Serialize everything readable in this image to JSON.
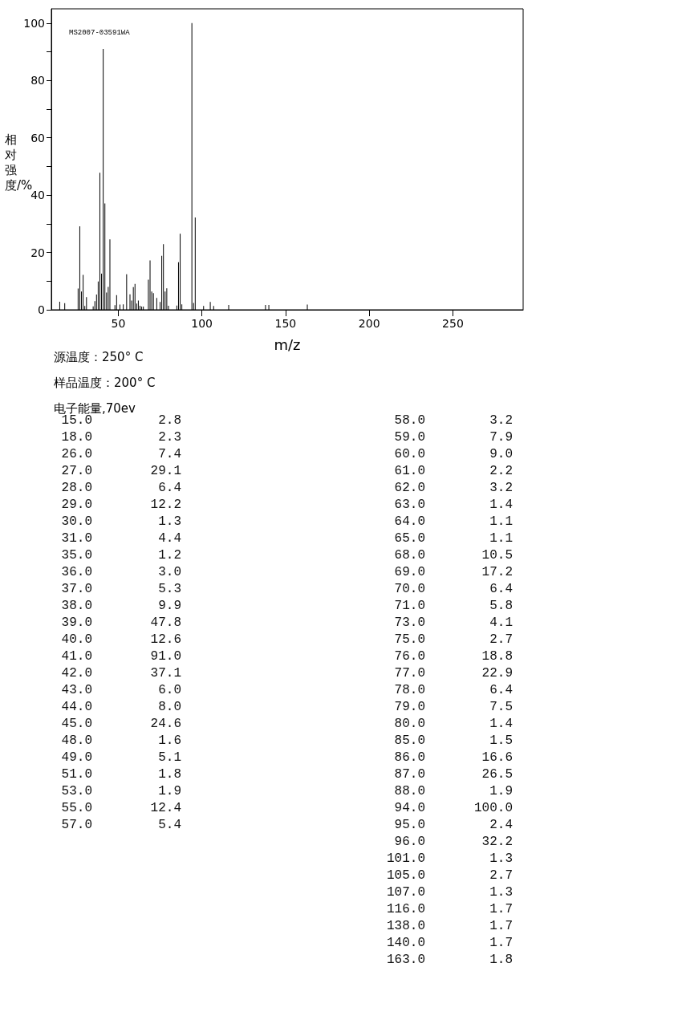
{
  "chart_data": {
    "type": "bar",
    "xlabel": "m/z",
    "ylabel": "相对强度/%",
    "annotations": [
      "MS2007-03591WA",
      "源温度：250° C",
      "样品温度：200° C",
      "电子能量,70ev",
      "15.0",
      "2.8",
      "18.0",
      "2.3",
      "26.0",
      "7.4",
      "27.0",
      "29.1",
      "28.0",
      "6.4",
      "29.0",
      "12.2",
      "30.0",
      "1.3",
      "31.0",
      "4.4",
      "35.0",
      "1.2",
      "36.0",
      "3.0",
      "37.0",
      "5.3",
      "38.0",
      "9.9",
      "39.0",
      "47.8",
      "40.0",
      "12.6",
      "41.0",
      "91.0",
      "42.0",
      "37.1",
      "43.0",
      "6.0",
      "44.0",
      "8.0",
      "45.0",
      "24.6",
      "48.0",
      "1.6",
      "49.0",
      "5.1",
      "51.0",
      "1.8",
      "53.0",
      "1.9",
      "55.0",
      "12.4",
      "57.0",
      "5.4",
      "58.0",
      "3.2",
      "59.0",
      "7.9",
      "60.0",
      "9.0",
      "61.0",
      "2.2",
      "62.0",
      "3.2",
      "63.0",
      "1.4",
      "64.0",
      "1.1",
      "65.0",
      "1.1",
      "68.0",
      "10.5",
      "69.0",
      "17.2",
      "70.0",
      "6.4",
      "71.0",
      "5.8",
      "73.0",
      "4.1",
      "75.0",
      "2.7",
      "76.0",
      "18.8",
      "77.0",
      "22.9",
      "78.0",
      "6.4",
      "79.0",
      "7.5",
      "80.0",
      "1.4",
      "85.0",
      "1.5",
      "86.0",
      "16.6",
      "87.0",
      "26.5",
      "88.0",
      "1.9",
      "94.0",
      "100.0",
      "95.0",
      "2.4",
      "96.0",
      "32.2",
      "101.0",
      "1.3",
      "105.0",
      "2.7",
      "107.0",
      "1.3",
      "116.0",
      "1.7",
      "138.0",
      "1.7",
      "140.0",
      "1.7",
      "163.0",
      "1.8"
    ],
    "x": [
      15,
      18,
      26,
      27,
      28,
      29,
      30,
      31,
      35,
      36,
      37,
      38,
      39,
      40,
      41,
      42,
      43,
      44,
      45,
      48,
      49,
      51,
      53,
      55,
      57,
      58,
      59,
      60,
      61,
      62,
      63,
      64,
      65,
      68,
      69,
      70,
      71,
      73,
      75,
      76,
      77,
      78,
      79,
      80,
      85,
      86,
      87,
      88,
      94,
      95,
      96,
      101,
      105,
      107,
      116,
      138,
      140,
      163
    ],
    "values": [
      2.8,
      2.3,
      7.4,
      29.1,
      6.4,
      12.2,
      1.3,
      4.4,
      1.2,
      3.0,
      5.3,
      9.9,
      47.8,
      12.6,
      91.0,
      37.1,
      6.0,
      8.0,
      24.6,
      1.6,
      5.1,
      1.8,
      1.9,
      12.4,
      5.4,
      3.2,
      7.9,
      9.0,
      2.2,
      3.2,
      1.4,
      1.1,
      1.1,
      10.5,
      17.2,
      6.4,
      5.8,
      4.1,
      2.7,
      18.8,
      22.9,
      6.4,
      7.5,
      1.4,
      1.5,
      16.6,
      26.5,
      1.9,
      100.0,
      2.4,
      32.2,
      1.3,
      2.7,
      1.3,
      1.7,
      1.7,
      1.7,
      1.8
    ],
    "color": "#000000",
    "xlim": [
      10,
      292
    ],
    "xticks": [
      50,
      100,
      150,
      200,
      250
    ],
    "ylim": [
      0,
      105
    ],
    "yticks": [
      0,
      {
        "value": 10,
        "label": null
      },
      20,
      {
        "value": 30,
        "label": null
      },
      40,
      {
        "value": 50,
        "label": null
      },
      60,
      {
        "value": 70,
        "label": null
      },
      80,
      {
        "value": 90,
        "label": null
      },
      100
    ],
    "grid": false
  }
}
